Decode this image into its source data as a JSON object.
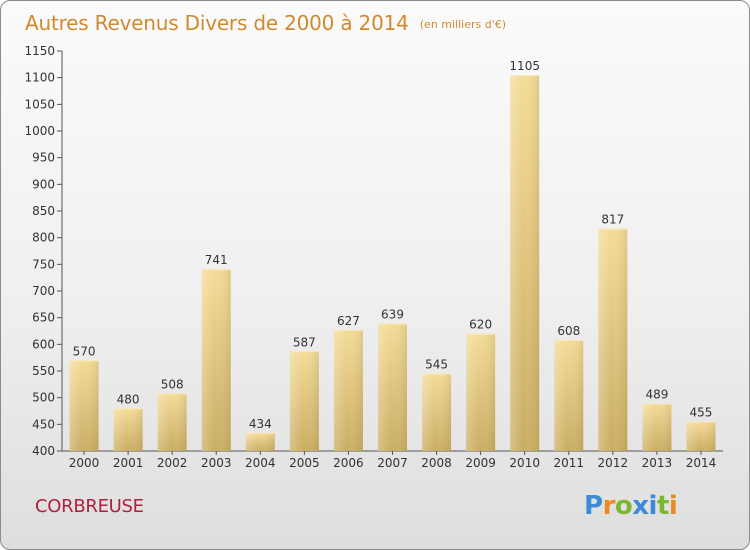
{
  "header": {
    "title": "Autres Revenus Divers de 2000 à 2014",
    "subtitle": "(en milliers d'€)"
  },
  "footer": {
    "commune": "CORBREUSE",
    "logo_text": "Proxiti"
  },
  "colors": {
    "title": "#d08a2e",
    "commune": "#b0213f",
    "bar_light": "#f4db97",
    "bar_dark": "#c9ad62",
    "logo": [
      "#3d8ad6",
      "#e98a22",
      "#7cb82f",
      "#3d8ad6",
      "#3d8ad6",
      "#7cb82f",
      "#e98a22"
    ]
  },
  "chart_data": {
    "type": "bar",
    "categories": [
      "2000",
      "2001",
      "2002",
      "2003",
      "2004",
      "2005",
      "2006",
      "2007",
      "2008",
      "2009",
      "2010",
      "2011",
      "2012",
      "2013",
      "2014"
    ],
    "values": [
      570,
      480,
      508,
      741,
      434,
      587,
      627,
      639,
      545,
      620,
      1105,
      608,
      817,
      489,
      455
    ],
    "title": "Autres Revenus Divers de 2000 à 2014",
    "subtitle": "(en milliers d'€)",
    "xlabel": "",
    "ylabel": "",
    "ylim": [
      400,
      1150
    ],
    "yticks": [
      400,
      450,
      500,
      550,
      600,
      650,
      700,
      750,
      800,
      850,
      900,
      950,
      1000,
      1050,
      1100,
      1150
    ],
    "grid": false,
    "legend": "none",
    "data_labels": true
  }
}
